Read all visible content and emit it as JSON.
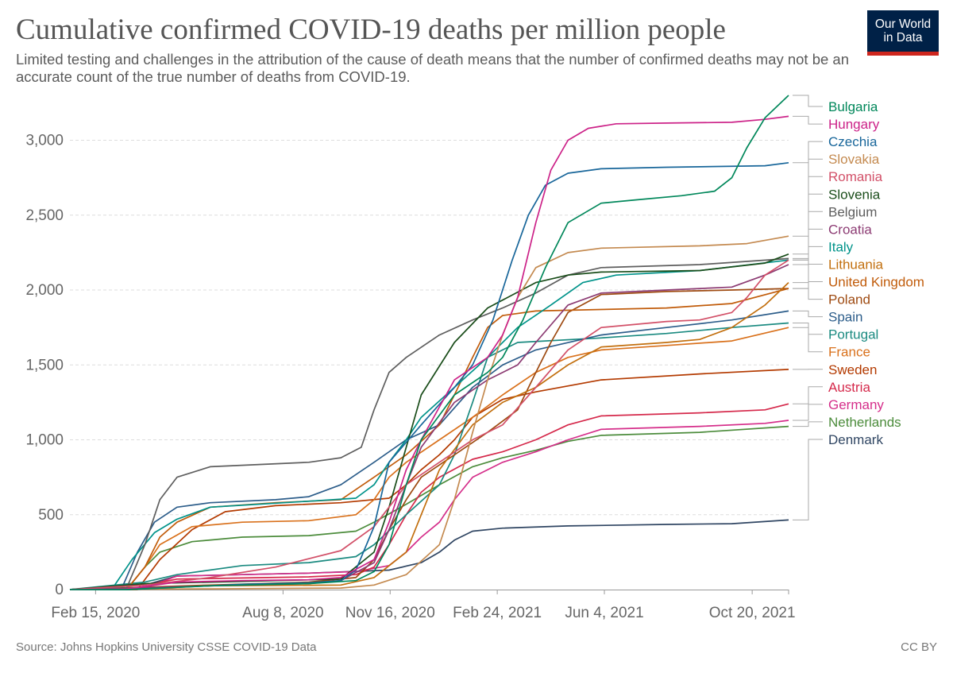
{
  "header": {
    "title": "Cumulative confirmed COVID-19 deaths per million people",
    "subtitle": "Limited testing and challenges in the attribution of the cause of death means that the number of confirmed deaths may not be an accurate count of the true number of deaths from COVID-19.",
    "logo_line1": "Our World",
    "logo_line2": "in Data"
  },
  "footer": {
    "source": "Source: Johns Hopkins University CSSE COVID-19 Data",
    "license": "CC BY"
  },
  "chart_data": {
    "type": "line",
    "title": "Cumulative confirmed COVID-19 deaths per million people",
    "xlabel": "",
    "ylabel": "",
    "x_range": [
      "2020-01-22",
      "2021-11-23"
    ],
    "ylim": [
      0,
      3300
    ],
    "yticks": [
      0,
      500,
      1000,
      1500,
      2000,
      2500,
      3000
    ],
    "ytick_labels": [
      "0",
      "500",
      "1,000",
      "1,500",
      "2,000",
      "2,500",
      "3,000"
    ],
    "xticks": [
      "2020-02-15",
      "2020-08-08",
      "2020-11-16",
      "2021-02-24",
      "2021-06-04",
      "2021-10-20"
    ],
    "xtick_labels": [
      "Feb 15, 2020",
      "Aug 8, 2020",
      "Nov 16, 2020",
      "Feb 24, 2021",
      "Jun 4, 2021",
      "Oct 20, 2021"
    ],
    "grid": "horizontal dashed",
    "legend": "right, line-end labels",
    "series": [
      {
        "name": "Bulgaria",
        "color": "#00875a",
        "x": [
          "2020-01-22",
          "2020-03-15",
          "2020-06-01",
          "2020-09-01",
          "2020-10-15",
          "2020-11-01",
          "2020-11-15",
          "2020-12-01",
          "2020-12-15",
          "2021-01-15",
          "2021-02-15",
          "2021-03-01",
          "2021-03-20",
          "2021-04-10",
          "2021-05-01",
          "2021-06-01",
          "2021-07-01",
          "2021-08-15",
          "2021-09-15",
          "2021-10-01",
          "2021-10-15",
          "2021-11-01",
          "2021-11-23"
        ],
        "y": [
          0,
          0,
          25,
          40,
          60,
          120,
          300,
          700,
          1000,
          1300,
          1450,
          1550,
          1800,
          2150,
          2450,
          2580,
          2600,
          2630,
          2660,
          2750,
          2950,
          3150,
          3300
        ]
      },
      {
        "name": "Hungary",
        "color": "#cc2288",
        "x": [
          "2020-01-22",
          "2020-03-15",
          "2020-05-01",
          "2020-07-01",
          "2020-09-01",
          "2020-10-01",
          "2020-11-01",
          "2020-11-15",
          "2020-12-01",
          "2020-12-15",
          "2021-01-15",
          "2021-02-15",
          "2021-03-01",
          "2021-03-15",
          "2021-04-01",
          "2021-04-15",
          "2021-05-01",
          "2021-05-20",
          "2021-06-15",
          "2021-08-01",
          "2021-10-01",
          "2021-11-01",
          "2021-11-23"
        ],
        "y": [
          0,
          5,
          50,
          60,
          65,
          80,
          200,
          450,
          800,
          1000,
          1400,
          1550,
          1700,
          1950,
          2450,
          2800,
          3000,
          3080,
          3110,
          3115,
          3120,
          3140,
          3160
        ]
      },
      {
        "name": "Czechia",
        "color": "#18669a",
        "x": [
          "2020-01-22",
          "2020-03-15",
          "2020-07-01",
          "2020-09-01",
          "2020-10-01",
          "2020-10-15",
          "2020-11-01",
          "2020-11-15",
          "2020-12-15",
          "2021-01-15",
          "2021-02-01",
          "2021-02-20",
          "2021-03-10",
          "2021-03-25",
          "2021-04-10",
          "2021-05-01",
          "2021-06-01",
          "2021-08-01",
          "2021-11-01",
          "2021-11-23"
        ],
        "y": [
          0,
          0,
          35,
          45,
          60,
          130,
          420,
          850,
          1100,
          1350,
          1500,
          1800,
          2200,
          2500,
          2700,
          2780,
          2810,
          2820,
          2830,
          2850
        ]
      },
      {
        "name": "Slovakia",
        "color": "#c48a50",
        "x": [
          "2020-01-22",
          "2020-06-01",
          "2020-10-01",
          "2020-11-01",
          "2020-12-01",
          "2021-01-01",
          "2021-01-15",
          "2021-02-01",
          "2021-02-15",
          "2021-03-01",
          "2021-03-15",
          "2021-04-01",
          "2021-05-01",
          "2021-06-01",
          "2021-09-01",
          "2021-10-15",
          "2021-11-23"
        ],
        "y": [
          0,
          5,
          10,
          30,
          100,
          300,
          600,
          1050,
          1400,
          1700,
          1950,
          2150,
          2250,
          2280,
          2295,
          2310,
          2360
        ]
      },
      {
        "name": "Romania",
        "color": "#d25068",
        "x": [
          "2020-01-22",
          "2020-04-01",
          "2020-06-01",
          "2020-08-01",
          "2020-10-01",
          "2020-11-01",
          "2020-12-01",
          "2021-01-01",
          "2021-02-01",
          "2021-03-01",
          "2021-04-01",
          "2021-05-01",
          "2021-06-01",
          "2021-08-01",
          "2021-09-01",
          "2021-10-01",
          "2021-10-15",
          "2021-11-01",
          "2021-11-23"
        ],
        "y": [
          0,
          30,
          80,
          150,
          260,
          420,
          700,
          850,
          1000,
          1100,
          1350,
          1600,
          1750,
          1790,
          1800,
          1850,
          1950,
          2100,
          2200
        ]
      },
      {
        "name": "Slovenia",
        "color": "#1a4d1a",
        "x": [
          "2020-01-22",
          "2020-04-01",
          "2020-06-01",
          "2020-10-01",
          "2020-11-01",
          "2020-11-15",
          "2020-12-01",
          "2020-12-15",
          "2021-01-15",
          "2021-02-15",
          "2021-04-01",
          "2021-05-01",
          "2021-06-01",
          "2021-09-01",
          "2021-11-01",
          "2021-11-23"
        ],
        "y": [
          0,
          40,
          50,
          70,
          250,
          550,
          950,
          1300,
          1650,
          1880,
          2050,
          2100,
          2120,
          2130,
          2180,
          2240
        ]
      },
      {
        "name": "Belgium",
        "color": "#5e5e5e",
        "x": [
          "2020-01-22",
          "2020-03-15",
          "2020-04-01",
          "2020-04-15",
          "2020-05-01",
          "2020-06-01",
          "2020-09-01",
          "2020-10-01",
          "2020-10-20",
          "2020-11-01",
          "2020-11-15",
          "2020-12-01",
          "2021-01-01",
          "2021-02-01",
          "2021-03-01",
          "2021-04-01",
          "2021-05-01",
          "2021-06-01",
          "2021-09-01",
          "2021-11-23"
        ],
        "y": [
          0,
          10,
          300,
          600,
          750,
          820,
          850,
          880,
          950,
          1200,
          1450,
          1550,
          1700,
          1800,
          1880,
          1980,
          2100,
          2150,
          2170,
          2210
        ]
      },
      {
        "name": "Croatia",
        "color": "#8c3b73",
        "x": [
          "2020-01-22",
          "2020-06-01",
          "2020-09-01",
          "2020-10-01",
          "2020-11-01",
          "2020-11-15",
          "2020-12-01",
          "2020-12-15",
          "2021-01-15",
          "2021-02-15",
          "2021-03-15",
          "2021-04-01",
          "2021-05-01",
          "2021-06-01",
          "2021-08-01",
          "2021-10-01",
          "2021-11-01",
          "2021-11-23"
        ],
        "y": [
          0,
          25,
          40,
          60,
          180,
          400,
          700,
          950,
          1250,
          1400,
          1500,
          1650,
          1900,
          1980,
          2000,
          2020,
          2100,
          2170
        ]
      },
      {
        "name": "Italy",
        "color": "#00938a",
        "x": [
          "2020-01-22",
          "2020-03-01",
          "2020-03-20",
          "2020-04-10",
          "2020-05-01",
          "2020-06-01",
          "2020-09-01",
          "2020-10-15",
          "2020-11-01",
          "2020-11-15",
          "2020-12-01",
          "2020-12-15",
          "2021-01-15",
          "2021-02-15",
          "2021-03-15",
          "2021-04-15",
          "2021-05-15",
          "2021-06-15",
          "2021-09-01",
          "2021-11-23"
        ],
        "y": [
          0,
          0,
          200,
          380,
          470,
          550,
          590,
          610,
          700,
          850,
          1000,
          1150,
          1350,
          1550,
          1750,
          1900,
          2050,
          2100,
          2130,
          2200
        ]
      },
      {
        "name": "Lithuania",
        "color": "#c26f0e",
        "x": [
          "2020-01-22",
          "2020-06-01",
          "2020-10-01",
          "2020-11-01",
          "2020-12-01",
          "2020-12-15",
          "2021-01-01",
          "2021-02-01",
          "2021-03-01",
          "2021-04-01",
          "2021-05-01",
          "2021-06-01",
          "2021-08-01",
          "2021-09-01",
          "2021-10-01",
          "2021-11-01",
          "2021-11-23"
        ],
        "y": [
          0,
          25,
          30,
          80,
          250,
          500,
          800,
          1100,
          1250,
          1350,
          1500,
          1620,
          1650,
          1670,
          1750,
          1900,
          2050
        ]
      },
      {
        "name": "United Kingdom",
        "color": "#c15c0b",
        "x": [
          "2020-01-22",
          "2020-03-15",
          "2020-04-01",
          "2020-04-15",
          "2020-05-01",
          "2020-06-01",
          "2020-08-01",
          "2020-10-01",
          "2020-11-01",
          "2020-12-01",
          "2021-01-01",
          "2021-01-15",
          "2021-02-01",
          "2021-02-15",
          "2021-03-01",
          "2021-04-01",
          "2021-06-01",
          "2021-08-01",
          "2021-10-01",
          "2021-11-23"
        ],
        "y": [
          0,
          0,
          150,
          350,
          450,
          550,
          580,
          600,
          750,
          900,
          1100,
          1300,
          1550,
          1750,
          1830,
          1860,
          1870,
          1880,
          1910,
          2010
        ]
      },
      {
        "name": "Poland",
        "color": "#9e4a11",
        "x": [
          "2020-01-22",
          "2020-06-01",
          "2020-09-01",
          "2020-10-15",
          "2020-11-01",
          "2020-11-15",
          "2020-12-01",
          "2020-12-15",
          "2021-01-15",
          "2021-02-15",
          "2021-03-15",
          "2021-04-01",
          "2021-04-15",
          "2021-05-01",
          "2021-06-01",
          "2021-08-01",
          "2021-10-01",
          "2021-11-23"
        ],
        "y": [
          0,
          30,
          50,
          80,
          200,
          400,
          600,
          750,
          900,
          1050,
          1200,
          1450,
          1650,
          1850,
          1970,
          1990,
          2000,
          2010
        ]
      },
      {
        "name": "Spain",
        "color": "#2c5d8a",
        "x": [
          "2020-01-22",
          "2020-03-10",
          "2020-03-25",
          "2020-04-10",
          "2020-05-01",
          "2020-06-01",
          "2020-08-01",
          "2020-09-01",
          "2020-10-01",
          "2020-11-01",
          "2020-12-01",
          "2021-01-01",
          "2021-02-01",
          "2021-03-01",
          "2021-04-01",
          "2021-06-01",
          "2021-08-01",
          "2021-10-01",
          "2021-11-23"
        ],
        "y": [
          0,
          0,
          250,
          450,
          550,
          580,
          600,
          620,
          700,
          850,
          1000,
          1100,
          1350,
          1500,
          1600,
          1700,
          1750,
          1800,
          1860
        ]
      },
      {
        "name": "Portugal",
        "color": "#1a8a80",
        "x": [
          "2020-01-22",
          "2020-04-01",
          "2020-05-01",
          "2020-07-01",
          "2020-09-01",
          "2020-10-15",
          "2020-11-01",
          "2020-12-01",
          "2021-01-01",
          "2021-01-15",
          "2021-02-01",
          "2021-02-15",
          "2021-03-15",
          "2021-06-01",
          "2021-08-01",
          "2021-10-01",
          "2021-11-23"
        ],
        "y": [
          0,
          50,
          100,
          160,
          180,
          220,
          300,
          500,
          700,
          900,
          1250,
          1550,
          1650,
          1680,
          1710,
          1750,
          1780
        ]
      },
      {
        "name": "France",
        "color": "#d9711c",
        "x": [
          "2020-01-22",
          "2020-03-15",
          "2020-04-01",
          "2020-04-15",
          "2020-05-15",
          "2020-07-01",
          "2020-09-01",
          "2020-10-15",
          "2020-11-01",
          "2020-11-15",
          "2020-12-01",
          "2021-01-01",
          "2021-02-01",
          "2021-03-01",
          "2021-04-01",
          "2021-05-01",
          "2021-06-01",
          "2021-08-01",
          "2021-10-01",
          "2021-11-23"
        ],
        "y": [
          0,
          0,
          150,
          300,
          420,
          450,
          460,
          500,
          600,
          750,
          850,
          1000,
          1150,
          1300,
          1450,
          1550,
          1600,
          1630,
          1660,
          1750
        ]
      },
      {
        "name": "Sweden",
        "color": "#b33a00",
        "x": [
          "2020-01-22",
          "2020-03-25",
          "2020-04-15",
          "2020-05-15",
          "2020-06-15",
          "2020-08-01",
          "2020-10-01",
          "2020-11-15",
          "2020-12-01",
          "2020-12-15",
          "2021-01-01",
          "2021-01-15",
          "2021-02-01",
          "2021-03-01",
          "2021-04-01",
          "2021-06-01",
          "2021-09-01",
          "2021-11-23"
        ],
        "y": [
          0,
          0,
          200,
          400,
          520,
          560,
          580,
          610,
          700,
          800,
          900,
          1000,
          1150,
          1270,
          1320,
          1400,
          1440,
          1470
        ]
      },
      {
        "name": "Austria",
        "color": "#d5294b",
        "x": [
          "2020-01-22",
          "2020-04-01",
          "2020-05-01",
          "2020-09-01",
          "2020-10-15",
          "2020-11-01",
          "2020-11-15",
          "2020-12-01",
          "2020-12-15",
          "2021-01-01",
          "2021-02-01",
          "2021-03-01",
          "2021-04-01",
          "2021-05-01",
          "2021-06-01",
          "2021-09-01",
          "2021-11-01",
          "2021-11-23"
        ],
        "y": [
          0,
          30,
          70,
          85,
          100,
          150,
          300,
          500,
          650,
          750,
          870,
          920,
          1000,
          1100,
          1160,
          1180,
          1200,
          1240
        ]
      },
      {
        "name": "Germany",
        "color": "#d52e8a",
        "x": [
          "2020-01-22",
          "2020-04-01",
          "2020-05-01",
          "2020-09-01",
          "2020-10-15",
          "2020-11-15",
          "2020-12-01",
          "2020-12-15",
          "2021-01-01",
          "2021-01-15",
          "2021-02-01",
          "2021-03-01",
          "2021-04-01",
          "2021-05-01",
          "2021-06-01",
          "2021-09-01",
          "2021-11-01",
          "2021-11-23"
        ],
        "y": [
          0,
          10,
          90,
          110,
          120,
          160,
          250,
          350,
          450,
          600,
          750,
          850,
          920,
          1000,
          1070,
          1090,
          1110,
          1130
        ]
      },
      {
        "name": "Netherlands",
        "color": "#4c8c3c",
        "x": [
          "2020-01-22",
          "2020-03-15",
          "2020-04-01",
          "2020-04-15",
          "2020-05-15",
          "2020-07-01",
          "2020-09-01",
          "2020-10-15",
          "2020-11-01",
          "2020-12-01",
          "2021-01-01",
          "2021-02-01",
          "2021-03-01",
          "2021-04-01",
          "2021-05-01",
          "2021-06-01",
          "2021-09-01",
          "2021-11-23"
        ],
        "y": [
          0,
          0,
          150,
          250,
          320,
          350,
          360,
          390,
          450,
          570,
          700,
          820,
          880,
          930,
          990,
          1030,
          1050,
          1090
        ]
      },
      {
        "name": "Denmark",
        "color": "#2f4562",
        "x": [
          "2020-01-22",
          "2020-04-01",
          "2020-05-01",
          "2020-09-01",
          "2020-11-15",
          "2020-12-15",
          "2021-01-01",
          "2021-01-15",
          "2021-02-01",
          "2021-03-01",
          "2021-05-01",
          "2021-08-01",
          "2021-10-01",
          "2021-11-23"
        ],
        "y": [
          0,
          30,
          90,
          110,
          130,
          180,
          250,
          330,
          390,
          410,
          425,
          435,
          440,
          465
        ]
      }
    ],
    "labels": [
      {
        "text": "Bulgaria",
        "color": "#00875a"
      },
      {
        "text": "Hungary",
        "color": "#cc2288"
      },
      {
        "text": "Czechia",
        "color": "#18669a"
      },
      {
        "text": "Slovakia",
        "color": "#c48a50"
      },
      {
        "text": "Romania",
        "color": "#d25068"
      },
      {
        "text": "Slovenia",
        "color": "#1a4d1a"
      },
      {
        "text": "Belgium",
        "color": "#5e5e5e"
      },
      {
        "text": "Croatia",
        "color": "#8c3b73"
      },
      {
        "text": "Italy",
        "color": "#00938a"
      },
      {
        "text": "Lithuania",
        "color": "#c26f0e"
      },
      {
        "text": "United Kingdom",
        "color": "#c15c0b"
      },
      {
        "text": "Poland",
        "color": "#9e4a11"
      },
      {
        "text": "Spain",
        "color": "#2c5d8a"
      },
      {
        "text": "Portugal",
        "color": "#1a8a80"
      },
      {
        "text": "France",
        "color": "#d9711c"
      },
      {
        "text": "Sweden",
        "color": "#b33a00"
      },
      {
        "text": "Austria",
        "color": "#d5294b"
      },
      {
        "text": "Germany",
        "color": "#d52e8a"
      },
      {
        "text": "Netherlands",
        "color": "#4c8c3c"
      },
      {
        "text": "Denmark",
        "color": "#2f4562"
      }
    ]
  }
}
